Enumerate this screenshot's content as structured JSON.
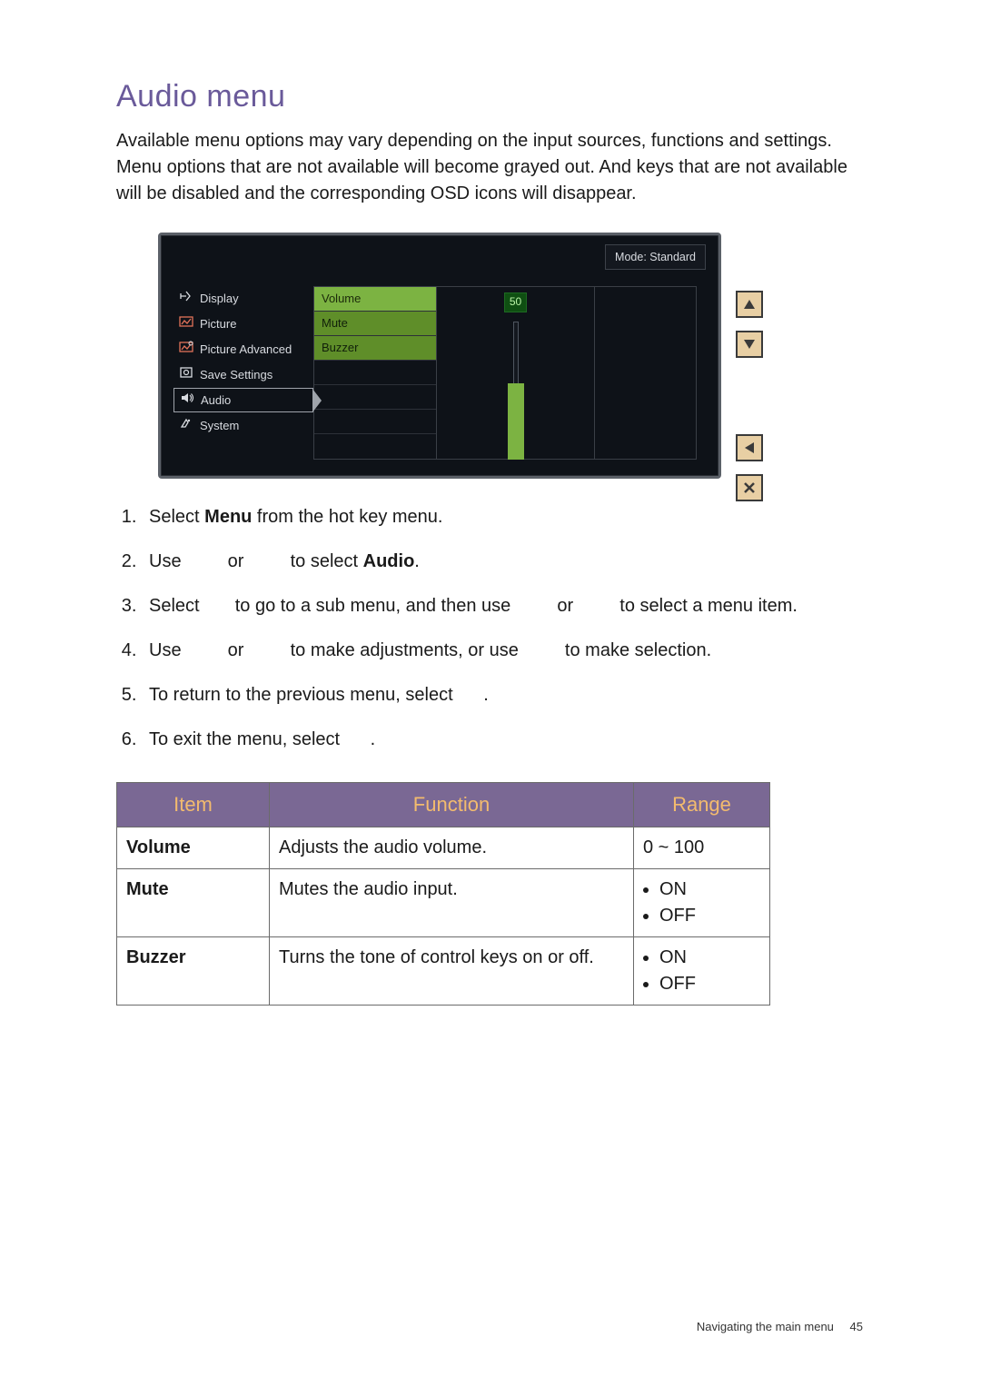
{
  "heading": "Audio menu",
  "intro": "Available menu options may vary depending on the input sources, functions and settings. Menu options that are not available will become grayed out. And keys that are not available will be disabled and the corresponding OSD icons will disappear.",
  "osd": {
    "mode_label": "Mode: Standard",
    "sidebar": [
      {
        "label": "Display",
        "icon": "display"
      },
      {
        "label": "Picture",
        "icon": "picture"
      },
      {
        "label": "Picture Advanced",
        "icon": "picture-adv"
      },
      {
        "label": "Save Settings",
        "icon": "save"
      },
      {
        "label": "Audio",
        "icon": "audio",
        "active": true
      },
      {
        "label": "System",
        "icon": "system"
      }
    ],
    "submenu": [
      "Volume",
      "Mute",
      "Buzzer"
    ],
    "value": "50",
    "slider": {
      "fill_pct": 55
    }
  },
  "steps": {
    "s1a": "Select ",
    "s1b": "Menu",
    "s1c": " from the hot key menu.",
    "s2a": "Use ",
    "s2or": " or ",
    "s2b": " to select ",
    "s2c": "Audio",
    "s2d": ".",
    "s3a": "Select ",
    "s3b": " to go to a sub menu, and then use ",
    "s3c": " to select a menu item.",
    "s4a": "Use ",
    "s4b": " to make adjustments, or use ",
    "s4c": " to make selection.",
    "s5": "To return to the previous menu, select ",
    "s5end": ".",
    "s6": "To exit the menu, select ",
    "s6end": "."
  },
  "table": {
    "headers": {
      "item": "Item",
      "func": "Function",
      "range": "Range"
    },
    "rows": [
      {
        "item": "Volume",
        "func": "Adjusts the audio volume.",
        "range_text": "0 ~ 100",
        "range_list": null
      },
      {
        "item": "Mute",
        "func": "Mutes the audio input.",
        "range_text": null,
        "range_list": [
          "ON",
          "OFF"
        ]
      },
      {
        "item": "Buzzer",
        "func": "Turns the tone of control keys on or off.",
        "range_text": null,
        "range_list": [
          "ON",
          "OFF"
        ]
      }
    ]
  },
  "footer": {
    "section": "Navigating the main menu",
    "page": "45"
  }
}
